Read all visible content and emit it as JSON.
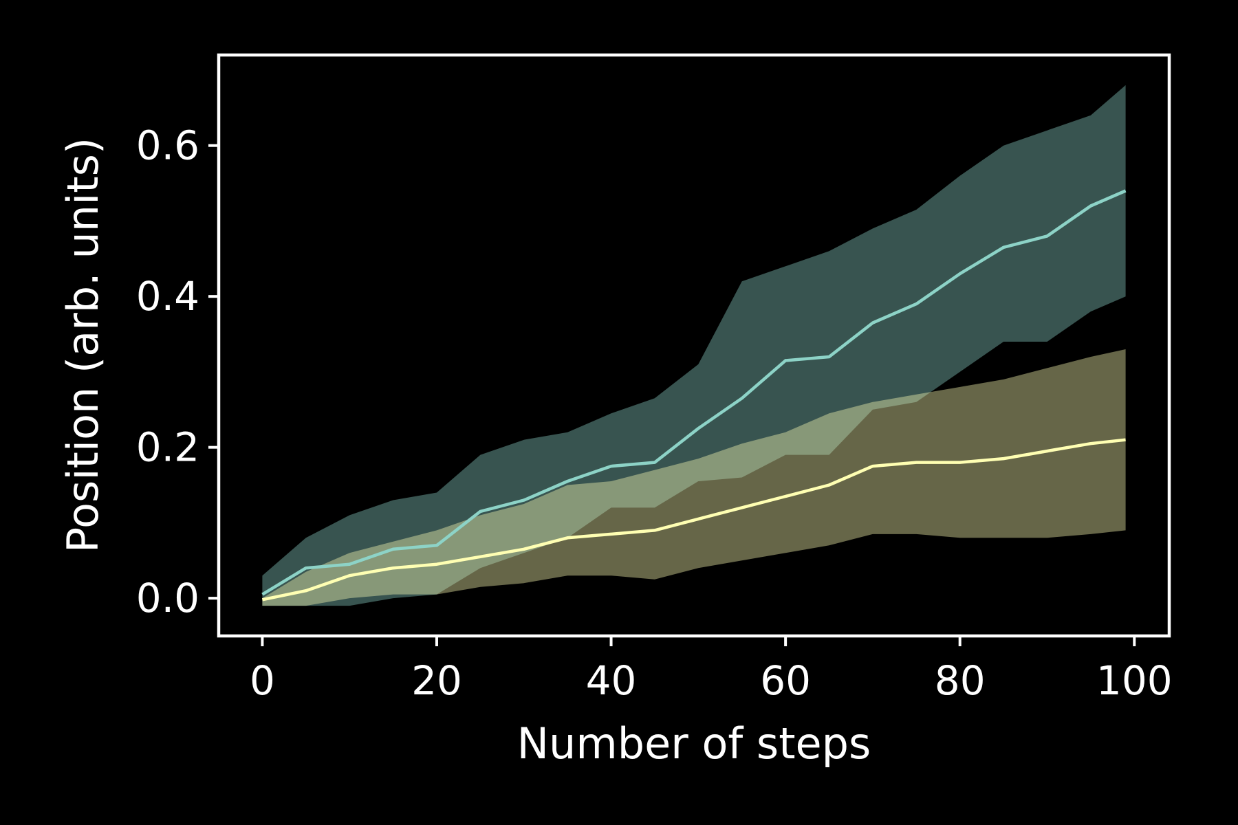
{
  "chart_data": {
    "type": "line",
    "xlabel": "Number of steps",
    "ylabel": "Position (arb. units)",
    "xlim": [
      -5,
      104
    ],
    "ylim": [
      -0.05,
      0.72
    ],
    "xticks": [
      0,
      20,
      40,
      60,
      80,
      100
    ],
    "xtick_labels": [
      "0",
      "20",
      "40",
      "60",
      "80",
      "100"
    ],
    "yticks": [
      0.0,
      0.2,
      0.4,
      0.6
    ],
    "ytick_labels": [
      "0.0",
      "0.2",
      "0.4",
      "0.6"
    ],
    "grid": false,
    "legend": "none",
    "background": "#000000",
    "axes_color": "#ffffff",
    "series": [
      {
        "color": "#8dd3c7",
        "band_color": "#8dd3c7",
        "x": [
          0,
          5,
          10,
          15,
          20,
          25,
          30,
          35,
          40,
          45,
          50,
          55,
          60,
          65,
          70,
          75,
          80,
          85,
          90,
          95,
          99
        ],
        "mean": [
          0.005,
          0.04,
          0.045,
          0.065,
          0.07,
          0.115,
          0.13,
          0.155,
          0.175,
          0.18,
          0.225,
          0.265,
          0.315,
          0.32,
          0.365,
          0.39,
          0.43,
          0.465,
          0.48,
          0.52,
          0.54
        ],
        "upper": [
          0.03,
          0.08,
          0.11,
          0.13,
          0.14,
          0.19,
          0.21,
          0.22,
          0.245,
          0.265,
          0.31,
          0.42,
          0.44,
          0.46,
          0.49,
          0.515,
          0.56,
          0.6,
          0.62,
          0.64,
          0.68
        ],
        "lower": [
          -0.01,
          -0.01,
          -0.01,
          0.0,
          0.005,
          0.04,
          0.06,
          0.08,
          0.12,
          0.12,
          0.155,
          0.16,
          0.19,
          0.19,
          0.25,
          0.26,
          0.3,
          0.34,
          0.34,
          0.38,
          0.4
        ]
      },
      {
        "color": "#ffffb3",
        "band_color": "#ffffb3",
        "x": [
          0,
          5,
          10,
          15,
          20,
          25,
          30,
          35,
          40,
          45,
          50,
          55,
          60,
          65,
          70,
          75,
          80,
          85,
          90,
          95,
          99
        ],
        "mean": [
          -0.002,
          0.01,
          0.03,
          0.04,
          0.045,
          0.055,
          0.065,
          0.08,
          0.085,
          0.09,
          0.105,
          0.12,
          0.135,
          0.15,
          0.175,
          0.18,
          0.18,
          0.185,
          0.195,
          0.205,
          0.21
        ],
        "upper": [
          0.0,
          0.035,
          0.06,
          0.075,
          0.09,
          0.11,
          0.125,
          0.15,
          0.155,
          0.17,
          0.185,
          0.205,
          0.22,
          0.245,
          0.26,
          0.27,
          0.28,
          0.29,
          0.305,
          0.32,
          0.33
        ],
        "lower": [
          -0.01,
          -0.01,
          0.0,
          0.005,
          0.005,
          0.015,
          0.02,
          0.03,
          0.03,
          0.025,
          0.04,
          0.05,
          0.06,
          0.07,
          0.085,
          0.085,
          0.08,
          0.08,
          0.08,
          0.085,
          0.09
        ]
      }
    ]
  }
}
